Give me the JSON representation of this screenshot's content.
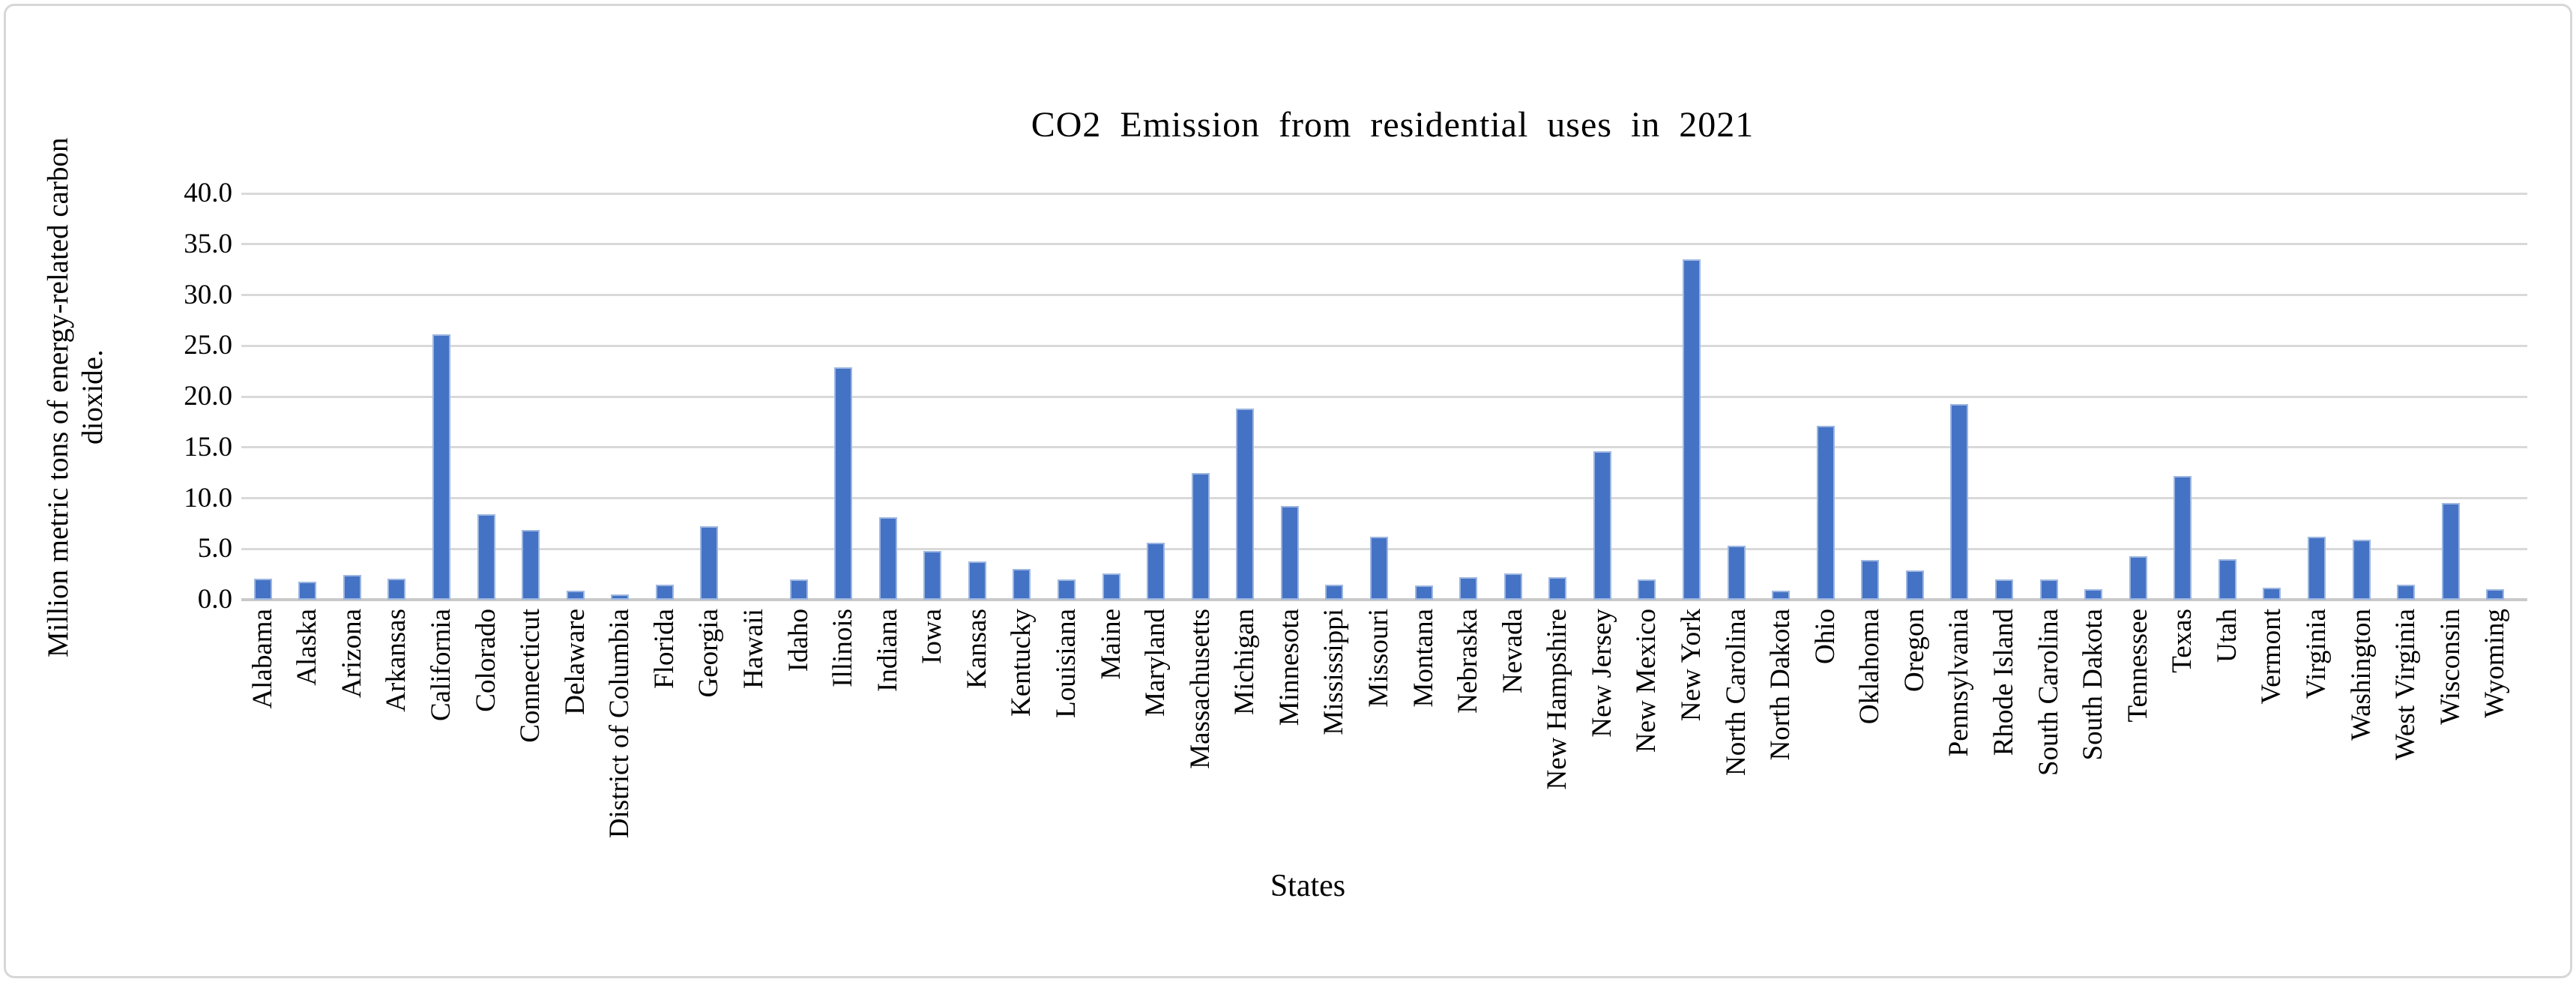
{
  "chart_data": {
    "type": "bar",
    "title": "CO2 Emission from residential uses in 2021",
    "xlabel": "States",
    "ylabel": "Million metric tons of energy-related carbon dioxide.",
    "ylabel_line1": "Million metric tons of energy-related carbon",
    "ylabel_line2": "dioxide.",
    "ylim": [
      0,
      40
    ],
    "ytick_step": 5,
    "yticks": [
      "0.0",
      "5.0",
      "10.0",
      "15.0",
      "20.0",
      "25.0",
      "30.0",
      "35.0",
      "40.0"
    ],
    "grid": true,
    "legend_position": "none",
    "categories": [
      "Alabama",
      "Alaska",
      "Arizona",
      "Arkansas",
      "California",
      "Colorado",
      "Connecticut",
      "Delaware",
      "District of Columbia",
      "Florida",
      "Georgia",
      "Hawaii",
      "Idaho",
      "Illinois",
      "Indiana",
      "Iowa",
      "Kansas",
      "Kentucky",
      "Louisiana",
      "Maine",
      "Maryland",
      "Massachusetts",
      "Michigan",
      "Minnesota",
      "Mississippi",
      "Missouri",
      "Montana",
      "Nebraska",
      "Nevada",
      "New Hampshire",
      "New Jersey",
      "New Mexico",
      "New York",
      "North Carolina",
      "North Dakota",
      "Ohio",
      "Oklahoma",
      "Oregon",
      "Pennsylvania",
      "Rhode Island",
      "South Carolina",
      "South Dakota",
      "Tennessee",
      "Texas",
      "Utah",
      "Vermont",
      "Virginia",
      "Washington",
      "West Virginia",
      "Wisconsin",
      "Wyoming"
    ],
    "values": [
      2.1,
      1.8,
      2.4,
      2.1,
      26.1,
      8.4,
      6.9,
      0.9,
      0.5,
      1.5,
      7.2,
      0.0,
      2.0,
      22.9,
      8.1,
      4.8,
      3.8,
      3.0,
      2.0,
      2.6,
      5.6,
      12.5,
      18.8,
      9.2,
      1.5,
      6.2,
      1.4,
      2.2,
      2.6,
      2.2,
      14.6,
      2.0,
      33.5,
      5.3,
      0.9,
      17.1,
      3.9,
      2.9,
      19.3,
      2.0,
      2.0,
      1.0,
      4.3,
      12.2,
      4.0,
      1.2,
      6.2,
      5.9,
      1.5,
      9.5,
      1.0
    ]
  },
  "colors": {
    "bar": "#4472C4",
    "bar_edge": "#9DB6E0",
    "gridline": "#D9D9D9",
    "axis_line": "#C9C9C9",
    "text": "#000000",
    "frame_border": "#D7D7D7",
    "background": "#FFFFFF"
  }
}
